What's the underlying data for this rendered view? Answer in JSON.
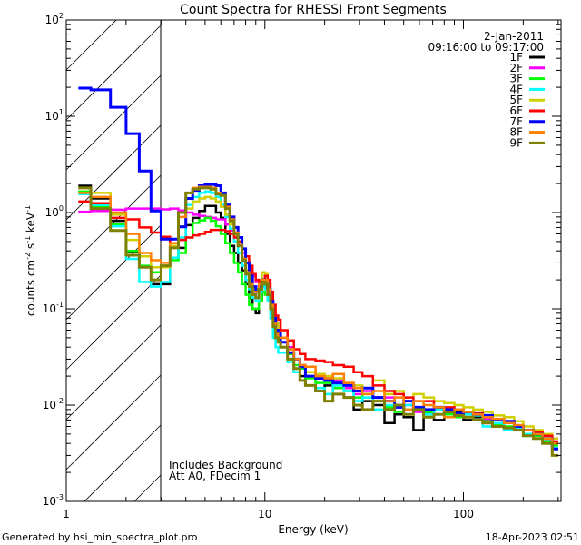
{
  "chart_data": {
    "type": "line",
    "title": "Count Spectra for RHESSI Front Segments",
    "xlabel": "Energy (keV)",
    "ylabel": {
      "main": "counts cm",
      "exp1": "-2",
      "mid": " s",
      "exp2": "-1",
      "end": " keV",
      "exp3": "-1"
    },
    "xscale": "log",
    "yscale": "log",
    "xlim": [
      1,
      310
    ],
    "ylim": [
      0.001,
      100
    ],
    "x_ticks": [
      {
        "value": 1,
        "label": "1"
      },
      {
        "value": 10,
        "label": "10"
      },
      {
        "value": 100,
        "label": "100"
      }
    ],
    "y_ticks": [
      {
        "value": 0.001,
        "base": "10",
        "exp": "-3"
      },
      {
        "value": 0.01,
        "base": "10",
        "exp": "-2"
      },
      {
        "value": 0.1,
        "base": "10",
        "exp": "-1"
      },
      {
        "value": 1,
        "base": "10",
        "exp": "0"
      },
      {
        "value": 10,
        "base": "10",
        "exp": "1"
      },
      {
        "value": 100,
        "base": "10",
        "exp": "2"
      }
    ],
    "hatched_region_keV": [
      1,
      3
    ],
    "legend": {
      "placement": "top-right",
      "date": "2-Jan-2011",
      "time_range": "09:16:00 to 09:17:00"
    },
    "annotations": [
      "Includes Background",
      "Att A0, FDecim 1"
    ],
    "energy_edges": [
      1.15,
      1.33,
      1.67,
      2,
      2.33,
      2.67,
      3,
      3.33,
      3.67,
      4,
      4.33,
      4.67,
      5,
      5.33,
      5.67,
      6,
      6.33,
      6.67,
      7,
      7.33,
      7.67,
      8,
      8.33,
      8.67,
      9,
      9.33,
      9.67,
      10,
      10.33,
      10.67,
      11,
      11.33,
      11.67,
      12,
      13,
      14,
      15,
      16,
      18,
      20,
      22,
      25,
      28,
      31,
      35,
      40,
      45,
      50,
      56,
      63,
      71,
      80,
      90,
      100,
      112,
      125,
      140,
      160,
      180,
      200,
      225,
      250,
      280,
      300
    ],
    "series": [
      {
        "name": "1F",
        "color": "#000000",
        "values": [
          1.9,
          1.4,
          0.82,
          0.39,
          0.27,
          0.18,
          0.18,
          0.34,
          0.43,
          0.74,
          0.88,
          1.04,
          1.17,
          1.17,
          1.0,
          0.88,
          0.6,
          0.45,
          0.38,
          0.3,
          0.25,
          0.18,
          0.13,
          0.1,
          0.09,
          0.12,
          0.17,
          0.17,
          0.14,
          0.1,
          0.065,
          0.05,
          0.045,
          0.04,
          0.03,
          0.022,
          0.02,
          0.016,
          0.015,
          0.016,
          0.013,
          0.012,
          0.009,
          0.011,
          0.01,
          0.0065,
          0.008,
          0.0075,
          0.0055,
          0.0085,
          0.007,
          0.0075,
          0.0085,
          0.007,
          0.0075,
          0.007,
          0.0062,
          0.0058,
          0.0055,
          0.0048,
          0.0045,
          0.004,
          0.0035
        ]
      },
      {
        "name": "2F",
        "color": "#ff00ff",
        "values": [
          1.02,
          1.04,
          1.07,
          1.1,
          1.1,
          1.1,
          1.08,
          1.1,
          1.05,
          1.0,
          0.95,
          0.92,
          0.9,
          0.88,
          0.85,
          0.85,
          0.75,
          0.65,
          0.55,
          0.45,
          0.38,
          0.3,
          0.25,
          0.22,
          0.19,
          0.19,
          0.2,
          0.19,
          0.15,
          0.12,
          0.09,
          0.07,
          0.06,
          0.05,
          0.04,
          0.03,
          0.026,
          0.022,
          0.02,
          0.02,
          0.018,
          0.015,
          0.013,
          0.014,
          0.012,
          0.012,
          0.0095,
          0.01,
          0.0085,
          0.009,
          0.009,
          0.0085,
          0.008,
          0.0085,
          0.008,
          0.0072,
          0.007,
          0.0068,
          0.006,
          0.0055,
          0.0052,
          0.0048,
          0.0045
        ]
      },
      {
        "name": "3F",
        "color": "#00ff00",
        "values": [
          1.65,
          1.15,
          0.75,
          0.4,
          0.28,
          0.24,
          0.28,
          0.32,
          0.38,
          0.55,
          0.78,
          0.83,
          0.88,
          0.82,
          0.72,
          0.6,
          0.48,
          0.38,
          0.3,
          0.24,
          0.18,
          0.14,
          0.11,
          0.1,
          0.1,
          0.12,
          0.15,
          0.14,
          0.12,
          0.09,
          0.06,
          0.05,
          0.045,
          0.045,
          0.034,
          0.026,
          0.024,
          0.019,
          0.017,
          0.017,
          0.015,
          0.014,
          0.012,
          0.013,
          0.011,
          0.0095,
          0.0085,
          0.009,
          0.0095,
          0.0085,
          0.0095,
          0.008,
          0.0075,
          0.0082,
          0.0078,
          0.0068,
          0.0062,
          0.006,
          0.0055,
          0.005,
          0.0048,
          0.0042,
          0.0038
        ]
      },
      {
        "name": "4F",
        "color": "#00ffff",
        "values": [
          1.55,
          1.2,
          0.72,
          0.33,
          0.19,
          0.17,
          0.19,
          0.34,
          0.55,
          1.2,
          1.45,
          1.6,
          1.65,
          1.6,
          1.45,
          1.2,
          0.9,
          0.68,
          0.5,
          0.38,
          0.28,
          0.2,
          0.16,
          0.13,
          0.12,
          0.15,
          0.17,
          0.16,
          0.12,
          0.08,
          0.05,
          0.04,
          0.035,
          0.035,
          0.028,
          0.022,
          0.018,
          0.016,
          0.015,
          0.013,
          0.016,
          0.014,
          0.011,
          0.012,
          0.009,
          0.01,
          0.0095,
          0.01,
          0.009,
          0.008,
          0.009,
          0.0085,
          0.0082,
          0.008,
          0.0078,
          0.006,
          0.0065,
          0.0055,
          0.0058,
          0.005,
          0.0045,
          0.004,
          0.0036
        ]
      },
      {
        "name": "5F",
        "color": "#d0d000",
        "values": [
          1.8,
          1.6,
          0.95,
          0.52,
          0.35,
          0.27,
          0.27,
          0.45,
          0.72,
          1.1,
          1.3,
          1.4,
          1.45,
          1.4,
          1.3,
          1.15,
          0.95,
          0.75,
          0.58,
          0.45,
          0.34,
          0.25,
          0.19,
          0.16,
          0.16,
          0.2,
          0.24,
          0.23,
          0.18,
          0.13,
          0.09,
          0.07,
          0.06,
          0.05,
          0.038,
          0.03,
          0.026,
          0.022,
          0.021,
          0.02,
          0.019,
          0.017,
          0.016,
          0.015,
          0.018,
          0.013,
          0.014,
          0.012,
          0.013,
          0.012,
          0.011,
          0.0105,
          0.01,
          0.0095,
          0.009,
          0.0085,
          0.0078,
          0.0075,
          0.0068,
          0.006,
          0.0055,
          0.005,
          0.0045
        ]
      },
      {
        "name": "6F",
        "color": "#ff0000",
        "values": [
          1.3,
          1.25,
          0.88,
          0.85,
          0.7,
          0.62,
          0.56,
          0.48,
          0.52,
          0.55,
          0.58,
          0.6,
          0.63,
          0.66,
          0.66,
          0.66,
          0.64,
          0.6,
          0.55,
          0.5,
          0.42,
          0.35,
          0.28,
          0.23,
          0.2,
          0.19,
          0.2,
          0.22,
          0.2,
          0.15,
          0.11,
          0.085,
          0.077,
          0.06,
          0.047,
          0.038,
          0.034,
          0.03,
          0.029,
          0.028,
          0.026,
          0.025,
          0.022,
          0.02,
          0.016,
          0.014,
          0.013,
          0.012,
          0.011,
          0.011,
          0.0095,
          0.0095,
          0.009,
          0.0085,
          0.0082,
          0.0075,
          0.007,
          0.0065,
          0.006,
          0.0055,
          0.0052,
          0.0048,
          0.0042
        ]
      },
      {
        "name": "7F",
        "color": "#0000ff",
        "values": [
          19.6,
          18.8,
          12.4,
          6.6,
          2.7,
          1.04,
          0.53,
          0.53,
          0.71,
          1.4,
          1.7,
          1.9,
          1.95,
          1.95,
          1.9,
          1.6,
          1.2,
          0.9,
          0.7,
          0.55,
          0.42,
          0.3,
          0.22,
          0.17,
          0.15,
          0.17,
          0.2,
          0.19,
          0.16,
          0.12,
          0.08,
          0.06,
          0.055,
          0.045,
          0.035,
          0.03,
          0.025,
          0.02,
          0.019,
          0.018,
          0.017,
          0.016,
          0.014,
          0.015,
          0.012,
          0.011,
          0.0095,
          0.011,
          0.0095,
          0.009,
          0.0095,
          0.009,
          0.0082,
          0.0085,
          0.008,
          0.0078,
          0.007,
          0.0068,
          0.006,
          0.0055,
          0.005,
          0.0045,
          0.0035
        ]
      },
      {
        "name": "8F",
        "color": "#ff8000",
        "values": [
          1.6,
          1.45,
          1.0,
          0.6,
          0.38,
          0.32,
          0.3,
          0.48,
          0.9,
          1.6,
          1.8,
          1.85,
          1.85,
          1.8,
          1.6,
          1.5,
          1.15,
          0.85,
          0.62,
          0.46,
          0.33,
          0.24,
          0.18,
          0.15,
          0.15,
          0.18,
          0.2,
          0.2,
          0.16,
          0.11,
          0.07,
          0.055,
          0.05,
          0.05,
          0.038,
          0.03,
          0.026,
          0.025,
          0.02,
          0.019,
          0.021,
          0.017,
          0.015,
          0.013,
          0.014,
          0.011,
          0.012,
          0.009,
          0.011,
          0.01,
          0.0095,
          0.0075,
          0.009,
          0.0085,
          0.008,
          0.0075,
          0.0072,
          0.0065,
          0.0062,
          0.0055,
          0.005,
          0.0045,
          0.004
        ]
      },
      {
        "name": "9F",
        "color": "#808000",
        "values": [
          1.8,
          1.1,
          0.65,
          0.36,
          0.27,
          0.2,
          0.28,
          0.43,
          1.0,
          1.6,
          1.75,
          1.8,
          1.8,
          1.75,
          1.55,
          1.5,
          1.1,
          0.82,
          0.6,
          0.45,
          0.32,
          0.23,
          0.17,
          0.14,
          0.13,
          0.16,
          0.19,
          0.18,
          0.14,
          0.1,
          0.065,
          0.05,
          0.045,
          0.04,
          0.03,
          0.024,
          0.018,
          0.016,
          0.014,
          0.011,
          0.013,
          0.012,
          0.01,
          0.009,
          0.011,
          0.009,
          0.01,
          0.008,
          0.009,
          0.0075,
          0.008,
          0.0085,
          0.0078,
          0.0075,
          0.007,
          0.0065,
          0.006,
          0.0058,
          0.0055,
          0.0048,
          0.0045,
          0.004,
          0.003
        ]
      }
    ]
  },
  "footer": {
    "generated_by": "Generated by hsi_min_spectra_plot.pro",
    "timestamp": "18-Apr-2023 02:51"
  }
}
